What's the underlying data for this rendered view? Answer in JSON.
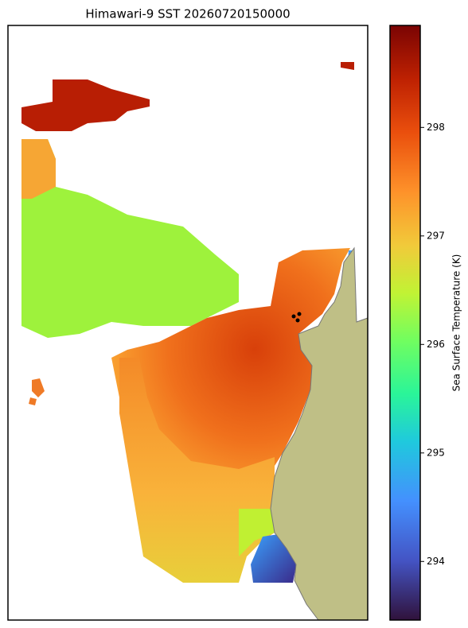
{
  "title": "Himawari-9 SST 20260720150000",
  "colorbar": {
    "label": "Sea Surface Temperature (K)",
    "range": [
      293.46,
      298.94
    ],
    "ticks": [
      294,
      295,
      296,
      297,
      298
    ]
  }
}
